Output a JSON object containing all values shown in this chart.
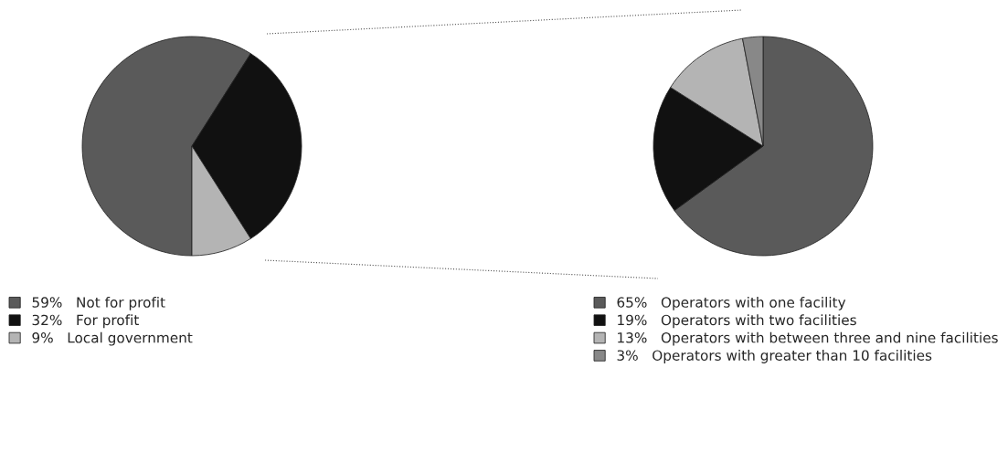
{
  "chart_data": [
    {
      "type": "pie",
      "categories": [
        "Not for profit",
        "For profit",
        "Local government"
      ],
      "values": [
        59,
        32,
        9
      ],
      "value_labels": [
        "59%",
        "32%",
        "9%"
      ],
      "colors": [
        "#5a5a5a",
        "#111111",
        "#b4b4b4"
      ],
      "legend": "bottom"
    },
    {
      "type": "pie",
      "categories": [
        "Operators with one facility",
        "Operators with two facilities",
        "Operators with between three and nine facilities",
        "Operators with greater than 10 facilities"
      ],
      "values": [
        65,
        19,
        13,
        3
      ],
      "value_labels": [
        "65%",
        "19%",
        "13%",
        "3%"
      ],
      "colors": [
        "#5a5a5a",
        "#111111",
        "#b4b4b4",
        "#888888"
      ],
      "legend": "bottom"
    }
  ]
}
